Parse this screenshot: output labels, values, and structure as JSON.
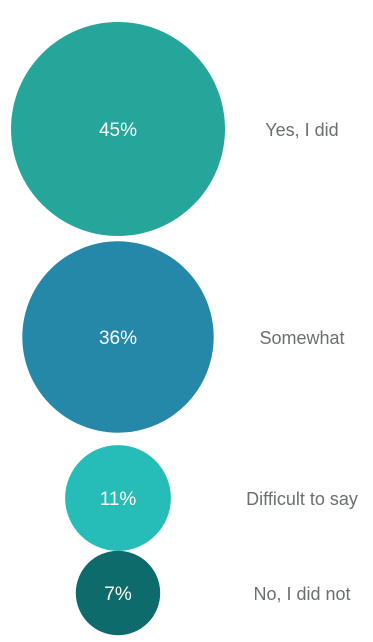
{
  "chart_data": {
    "type": "bubble",
    "value_unit": "%",
    "legend": "none",
    "grid": false,
    "items": [
      {
        "category": "Yes, I did",
        "value": 45,
        "label": "45%",
        "color": "#26a69a"
      },
      {
        "category": "Somewhat",
        "value": 36,
        "label": "36%",
        "color": "#2588a8"
      },
      {
        "category": "Difficult to say",
        "value": 11,
        "label": "11%",
        "color": "#26bdb8"
      },
      {
        "category": "No, I did not",
        "value": 7,
        "label": "7%",
        "color": "#0e6b6b"
      }
    ]
  }
}
